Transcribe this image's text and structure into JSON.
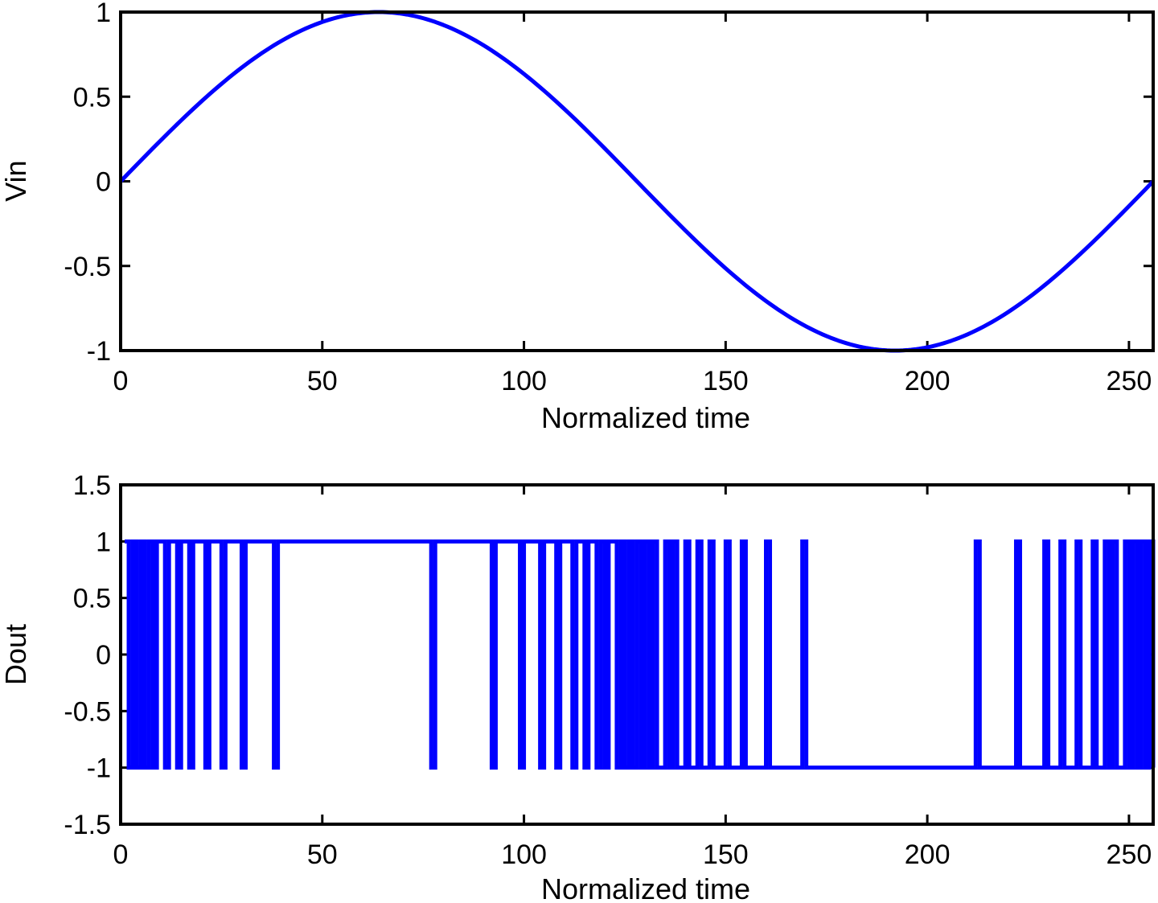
{
  "chart_data": [
    {
      "type": "line",
      "title": "",
      "xlabel": "Normalized time",
      "ylabel": "Vin",
      "xlim": [
        0,
        256
      ],
      "ylim": [
        -1,
        1
      ],
      "xticks": [
        "0",
        "50",
        "100",
        "150",
        "200",
        "250"
      ],
      "yticks": [
        "1",
        "0.5",
        "0",
        "-0.5",
        "-1"
      ],
      "xtick_values": [
        0,
        50,
        100,
        150,
        200,
        250
      ],
      "ytick_values": [
        1,
        0.5,
        0,
        -0.5,
        -1
      ],
      "grid": false,
      "line_color": "#0000ff",
      "series": [
        {
          "function": "sin(2*pi*x/256)",
          "x_start": 0,
          "x_end": 256,
          "x_step": 1
        }
      ]
    },
    {
      "type": "line",
      "title": "",
      "xlabel": "Normalized time",
      "ylabel": "Dout",
      "xlim": [
        0,
        256
      ],
      "ylim": [
        -1.5,
        1.5
      ],
      "xticks": [
        "0",
        "50",
        "100",
        "150",
        "200",
        "250"
      ],
      "yticks": [
        "1.5",
        "1",
        "0.5",
        "0",
        "-0.5",
        "-1",
        "-1.5"
      ],
      "xtick_values": [
        0,
        50,
        100,
        150,
        200,
        250
      ],
      "ytick_values": [
        1.5,
        1,
        0.5,
        0,
        -0.5,
        -1,
        -1.5
      ],
      "grid": false,
      "line_color": "#0000ff",
      "levels": [
        1,
        -1
      ],
      "series": [
        {
          "encoding": "first-order sigma-delta modulation of Vin; output is +1 or -1 at each step",
          "x_start": 1,
          "x_end": 256,
          "x_step": 1
        }
      ]
    }
  ]
}
